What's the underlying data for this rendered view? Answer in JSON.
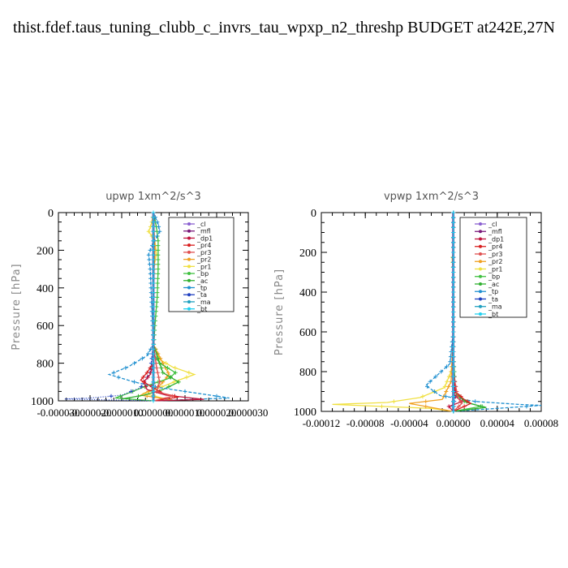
{
  "page_title": "thist.fdef.taus_tuning_clubb_c_invrs_tau_wpxp_n2_threshp  BUDGET at242E,27N",
  "legend_entries": [
    "_cl",
    "_mfl",
    "_dp1",
    "_pr4",
    "_pr3",
    "_pr2",
    "_pr1",
    "_bp",
    "_ac",
    "_tp",
    "_ta",
    "_ma",
    "_bt"
  ],
  "series_colors": {
    "_cl": "#8a5fd0",
    "_mfl": "#7a1a7a",
    "_dp1": "#c0143c",
    "_pr4": "#d81e1e",
    "_pr3": "#e05050",
    "_pr2": "#f0a020",
    "_pr1": "#f0e040",
    "_bp": "#40c040",
    "_ac": "#30b030",
    "_tp": "#2090d0",
    "_ta": "#2040c0",
    "_ma": "#20a0c0",
    "_bt": "#20d0f0"
  },
  "chart_data": [
    {
      "type": "line",
      "title": "upwp   1xm^2/s^3",
      "ylabel": "Pressure [hPa]",
      "xlabel": "",
      "ylim": [
        1000,
        0
      ],
      "xlim": [
        -3e-05,
        3e-05
      ],
      "y_ticks": [
        0,
        200,
        400,
        600,
        800,
        1000
      ],
      "x_tick_labels": [
        "-0.000030",
        "-0.000020",
        "-0.000010",
        "0.000000",
        "0.000010",
        "0.000020",
        "0.000030"
      ],
      "x_tick_values": [
        -3e-05,
        -2e-05,
        -1e-05,
        0,
        1e-05,
        2e-05,
        3e-05
      ],
      "series": [
        {
          "name": "_pr1",
          "points": [
            [
              0,
              0
            ],
            [
              -5e-07,
              50
            ],
            [
              -1e-06,
              80
            ],
            [
              -1.5e-06,
              100
            ],
            [
              5e-07,
              150
            ],
            [
              1e-06,
              220
            ],
            [
              0,
              300
            ],
            [
              0,
              500
            ],
            [
              0,
              700
            ],
            [
              2e-06,
              780
            ],
            [
              6e-06,
              820
            ],
            [
              1.3e-05,
              860
            ],
            [
              8e-06,
              890
            ],
            [
              2e-06,
              930
            ],
            [
              -3e-06,
              960
            ],
            [
              4e-06,
              990
            ],
            [
              0,
              1000
            ]
          ]
        },
        {
          "name": "_pr2",
          "points": [
            [
              0,
              0
            ],
            [
              5e-07,
              200
            ],
            [
              0,
              400
            ],
            [
              0,
              700
            ],
            [
              3e-06,
              800
            ],
            [
              5e-06,
              860
            ],
            [
              2e-06,
              920
            ],
            [
              -4e-06,
              970
            ],
            [
              6e-06,
              995
            ]
          ]
        },
        {
          "name": "_bp",
          "points": [
            [
              0,
              0
            ],
            [
              1e-06,
              80
            ],
            [
              1.5e-06,
              150
            ],
            [
              1.5e-06,
              300
            ],
            [
              1.2e-06,
              450
            ],
            [
              5e-07,
              600
            ],
            [
              0,
              750
            ],
            [
              2e-06,
              800
            ],
            [
              7e-06,
              850
            ],
            [
              5e-06,
              880
            ],
            [
              -2e-06,
              920
            ],
            [
              -8e-06,
              960
            ],
            [
              -1.2e-05,
              985
            ],
            [
              0,
              1000
            ]
          ]
        },
        {
          "name": "_ac",
          "points": [
            [
              0,
              0
            ],
            [
              0,
              300
            ],
            [
              0,
              700
            ],
            [
              3e-06,
              850
            ],
            [
              8e-06,
              900
            ],
            [
              3e-06,
              940
            ],
            [
              -3e-06,
              970
            ],
            [
              -1e-05,
              990
            ]
          ]
        },
        {
          "name": "_tp",
          "points": [
            [
              0,
              0
            ],
            [
              1.5e-06,
              60
            ],
            [
              2e-06,
              100
            ],
            [
              0,
              160
            ],
            [
              -1.5e-06,
              220
            ],
            [
              -1e-06,
              300
            ],
            [
              -5e-07,
              500
            ],
            [
              0,
              700
            ],
            [
              -2e-06,
              760
            ],
            [
              -8e-06,
              820
            ],
            [
              -1.4e-05,
              860
            ],
            [
              -6e-06,
              900
            ],
            [
              2e-06,
              930
            ],
            [
              1e-05,
              950
            ],
            [
              1.8e-05,
              970
            ],
            [
              2.4e-05,
              985
            ],
            [
              0,
              1000
            ]
          ]
        },
        {
          "name": "_ta",
          "points": [
            [
              0,
              0
            ],
            [
              0,
              300
            ],
            [
              0,
              700
            ],
            [
              -1e-06,
              850
            ],
            [
              -4e-06,
              930
            ],
            [
              -1e-05,
              970
            ],
            [
              -2e-05,
              985
            ],
            [
              -2.8e-05,
              990
            ],
            [
              0,
              1000
            ]
          ]
        },
        {
          "name": "_dp1",
          "points": [
            [
              0,
              0
            ],
            [
              0,
              600
            ],
            [
              0,
              800
            ],
            [
              -1e-06,
              860
            ],
            [
              -3e-06,
              900
            ],
            [
              -2e-06,
              940
            ],
            [
              4e-06,
              970
            ],
            [
              1.2e-05,
              985
            ],
            [
              1.6e-05,
              992
            ],
            [
              0,
              1000
            ]
          ]
        },
        {
          "name": "_pr4",
          "points": [
            [
              0,
              0
            ],
            [
              0,
              700
            ],
            [
              0,
              800
            ],
            [
              -2e-06,
              850
            ],
            [
              -4e-06,
              890
            ],
            [
              0,
              930
            ],
            [
              3e-06,
              960
            ],
            [
              8e-06,
              980
            ],
            [
              0,
              1000
            ]
          ]
        },
        {
          "name": "_pr3",
          "points": [
            [
              0,
              0
            ],
            [
              0,
              700
            ],
            [
              1e-06,
              820
            ],
            [
              2e-06,
              900
            ],
            [
              1e-06,
              950
            ],
            [
              6e-06,
              975
            ],
            [
              0,
              1000
            ]
          ]
        },
        {
          "name": "_cl",
          "points": [
            [
              0,
              0
            ],
            [
              0,
              200
            ],
            [
              0,
              400
            ],
            [
              0,
              600
            ],
            [
              0,
              800
            ],
            [
              0,
              1000
            ]
          ]
        },
        {
          "name": "_mfl",
          "points": [
            [
              0,
              0
            ],
            [
              0,
              200
            ],
            [
              0,
              400
            ],
            [
              0,
              600
            ],
            [
              0,
              800
            ],
            [
              0,
              1000
            ]
          ]
        },
        {
          "name": "_ma",
          "points": [
            [
              0,
              0
            ],
            [
              0,
              500
            ],
            [
              0,
              1000
            ]
          ]
        },
        {
          "name": "_bt",
          "points": [
            [
              0,
              0
            ],
            [
              0,
              500
            ],
            [
              0,
              1000
            ]
          ]
        }
      ]
    },
    {
      "type": "line",
      "title": "vpwp   1xm^2/s^3",
      "ylabel": "Pressure [hPa]",
      "xlabel": "",
      "ylim": [
        1000,
        0
      ],
      "xlim": [
        -0.00012,
        8e-05
      ],
      "y_ticks": [
        0,
        200,
        400,
        600,
        800,
        1000
      ],
      "x_tick_labels": [
        "-0.00012",
        "-0.00008",
        "-0.00004",
        "0.00000",
        "0.00004",
        "0.00008"
      ],
      "x_tick_values": [
        -0.00012,
        -8e-05,
        -4e-05,
        0,
        4e-05,
        8e-05
      ],
      "series": [
        {
          "name": "_pr1",
          "points": [
            [
              0,
              0
            ],
            [
              0,
              200
            ],
            [
              -1e-06,
              230
            ],
            [
              0,
              300
            ],
            [
              0,
              700
            ],
            [
              -2e-06,
              800
            ],
            [
              -8e-06,
              880
            ],
            [
              -3e-05,
              930
            ],
            [
              -6e-05,
              955
            ],
            [
              -0.00011,
              965
            ],
            [
              -2e-05,
              985
            ],
            [
              0,
              1000
            ]
          ]
        },
        {
          "name": "_pr2",
          "points": [
            [
              0,
              0
            ],
            [
              0,
              600
            ],
            [
              -2e-06,
              850
            ],
            [
              -1e-05,
              940
            ],
            [
              -4e-05,
              960
            ],
            [
              0,
              1000
            ]
          ]
        },
        {
          "name": "_tp",
          "points": [
            [
              0,
              0
            ],
            [
              0,
              600
            ],
            [
              -3e-06,
              760
            ],
            [
              -1.5e-05,
              820
            ],
            [
              -2.5e-05,
              870
            ],
            [
              -1.2e-05,
              920
            ],
            [
              2e-05,
              950
            ],
            [
              6e-05,
              965
            ],
            [
              8e-05,
              970
            ],
            [
              0,
              1000
            ]
          ]
        },
        {
          "name": "_bp",
          "points": [
            [
              0,
              0
            ],
            [
              0,
              700
            ],
            [
              2e-06,
              900
            ],
            [
              1e-05,
              950
            ],
            [
              2.5e-05,
              975
            ],
            [
              0,
              1000
            ]
          ]
        },
        {
          "name": "_ac",
          "points": [
            [
              0,
              0
            ],
            [
              0,
              800
            ],
            [
              3e-06,
              920
            ],
            [
              1.5e-05,
              960
            ],
            [
              3e-05,
              980
            ],
            [
              0,
              1000
            ]
          ]
        },
        {
          "name": "_dp1",
          "points": [
            [
              0,
              0
            ],
            [
              0,
              800
            ],
            [
              1e-06,
              920
            ],
            [
              8e-06,
              950
            ],
            [
              -4e-06,
              975
            ],
            [
              0,
              1000
            ]
          ]
        },
        {
          "name": "_pr4",
          "points": [
            [
              0,
              0
            ],
            [
              0,
              800
            ],
            [
              2e-06,
              900
            ],
            [
              1e-05,
              940
            ],
            [
              1.6e-05,
              960
            ],
            [
              0,
              1000
            ]
          ]
        },
        {
          "name": "_pr3",
          "points": [
            [
              0,
              0
            ],
            [
              0,
              800
            ],
            [
              4e-06,
              930
            ],
            [
              8e-06,
              960
            ],
            [
              0,
              1000
            ]
          ]
        },
        {
          "name": "_ta",
          "points": [
            [
              0,
              0
            ],
            [
              0,
              800
            ],
            [
              1e-06,
              940
            ],
            [
              0,
              1000
            ]
          ]
        },
        {
          "name": "_cl",
          "points": [
            [
              0,
              0
            ],
            [
              0,
              200
            ],
            [
              0,
              400
            ],
            [
              0,
              600
            ],
            [
              0,
              800
            ],
            [
              0,
              1000
            ]
          ]
        },
        {
          "name": "_mfl",
          "points": [
            [
              0,
              0
            ],
            [
              0,
              200
            ],
            [
              0,
              400
            ],
            [
              0,
              600
            ],
            [
              0,
              800
            ],
            [
              0,
              1000
            ]
          ]
        },
        {
          "name": "_ma",
          "points": [
            [
              0,
              0
            ],
            [
              0,
              500
            ],
            [
              0,
              1000
            ]
          ]
        },
        {
          "name": "_bt",
          "points": [
            [
              0,
              0
            ],
            [
              0,
              500
            ],
            [
              0,
              1000
            ]
          ]
        }
      ]
    }
  ]
}
